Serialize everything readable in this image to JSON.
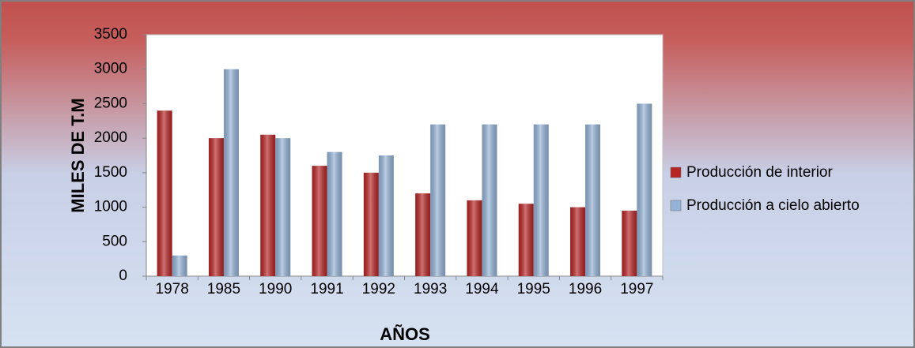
{
  "chart_data": {
    "type": "bar",
    "categories": [
      "1978",
      "1985",
      "1990",
      "1991",
      "1992",
      "1993",
      "1994",
      "1995",
      "1996",
      "1997"
    ],
    "series": [
      {
        "name": "Producción de interior",
        "color": "#b82525",
        "values": [
          2400,
          2000,
          2050,
          1600,
          1500,
          1200,
          1100,
          1050,
          1000,
          950
        ]
      },
      {
        "name": "Producción a cielo abierto",
        "color": "#95b3d7",
        "values": [
          300,
          3000,
          2000,
          1800,
          1750,
          2200,
          2200,
          2200,
          2200,
          2500
        ]
      }
    ],
    "x_label": "AÑOS",
    "y_label": "MILES DE T.M",
    "ylim": [
      0,
      3500
    ],
    "yticks": [
      0,
      500,
      1000,
      1500,
      2000,
      2500,
      3000,
      3500
    ],
    "legend": "right"
  }
}
